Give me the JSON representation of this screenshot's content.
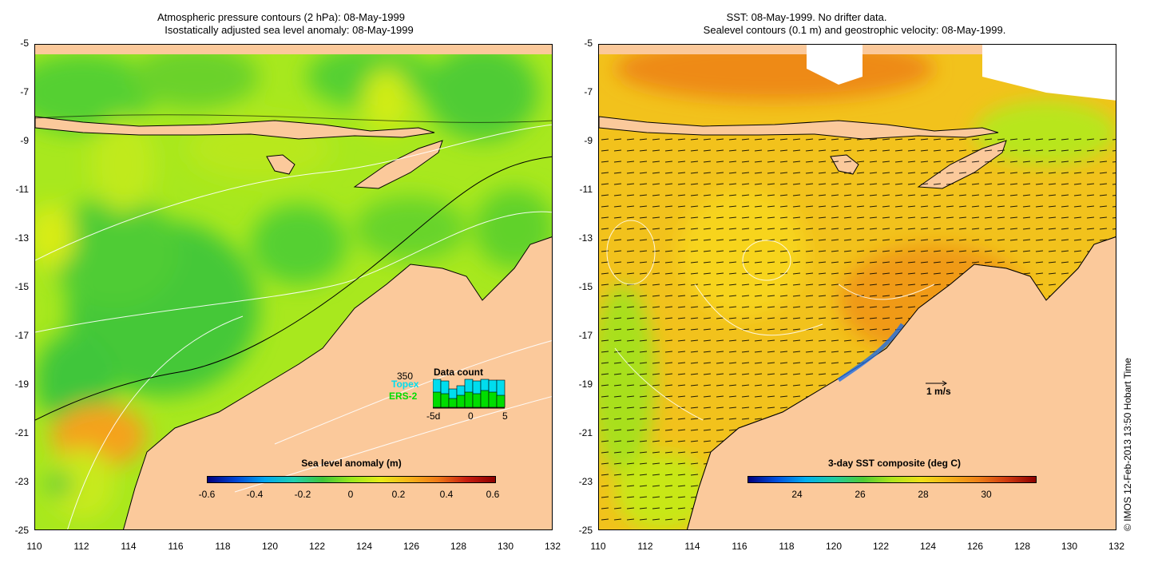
{
  "left": {
    "title_line1": "Atmospheric pressure contours (2 hPa): 08-May-1999",
    "title_line2": "Isostatically adjusted sea level anomaly: 08-May-1999",
    "colorbar": {
      "title": "Sea level anomaly (m)",
      "ticks": [
        "-0.6",
        "-0.4",
        "-0.2",
        "0",
        "0.2",
        "0.4",
        "0.6"
      ]
    },
    "data_count": {
      "title": "Data count",
      "max_label": "350",
      "topex_label": "Topex",
      "ers_label": "ERS-2",
      "x_ticks": [
        "-5d",
        "0",
        "5"
      ],
      "topex_color": "#00ddee",
      "ers_color": "#00dd00"
    }
  },
  "right": {
    "title_line1": "SST: 08-May-1999. No drifter data.",
    "title_line2": "Sealevel contours (0.1 m) and geostrophic velocity: 08-May-1999.",
    "colorbar": {
      "title": "3-day SST composite (deg C)",
      "ticks": [
        "24",
        "26",
        "28",
        "30"
      ]
    },
    "velocity_scale_label": "1 m/s"
  },
  "axes": {
    "y_ticks": [
      "-5",
      "-7",
      "-9",
      "-11",
      "-13",
      "-15",
      "-17",
      "-19",
      "-21",
      "-23",
      "-25"
    ],
    "x_ticks": [
      "110",
      "112",
      "114",
      "116",
      "118",
      "120",
      "122",
      "124",
      "126",
      "128",
      "130",
      "132"
    ]
  },
  "credit": "© IMOS 12-Feb-2013 13:50 Hobart Time",
  "colors": {
    "land": "#fbc99b",
    "ocean_left": "#9bea1c",
    "ocean_right": "#f0b21c"
  }
}
